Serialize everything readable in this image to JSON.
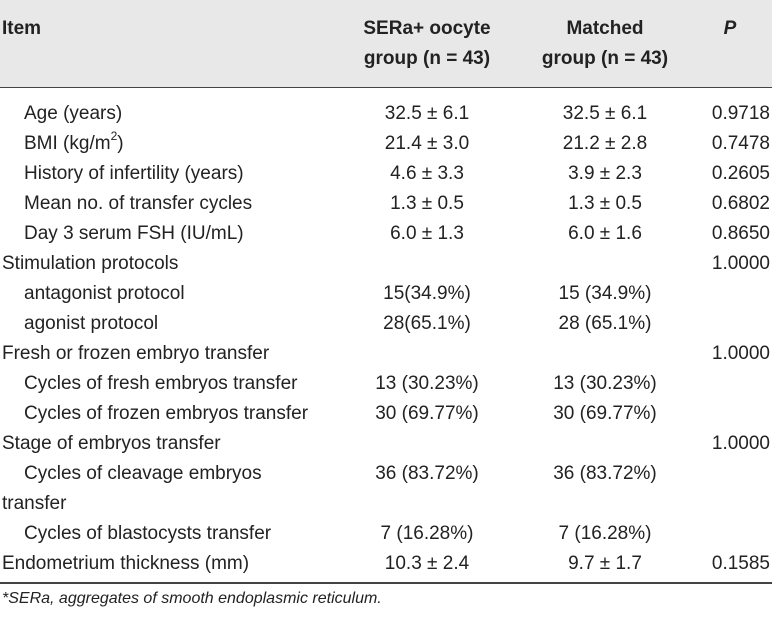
{
  "header": {
    "item": "Item",
    "group1": "SERa+ oocyte\ngroup (n = 43)",
    "group2": "Matched\ngroup (n = 43)",
    "p": "P"
  },
  "rows": [
    {
      "label": "Age (years)",
      "indent": true,
      "g1": "32.5 ± 6.1",
      "g2": "32.5 ± 6.1",
      "p": "0.9718"
    },
    {
      "label": "BMI (kg/m",
      "label_sup": "2",
      "label_suffix": ")",
      "indent": true,
      "g1": "21.4 ± 3.0",
      "g2": "21.2 ± 2.8",
      "p": "0.7478"
    },
    {
      "label": "History of infertility (years)",
      "indent": true,
      "g1": "4.6 ± 3.3",
      "g2": "3.9 ± 2.3",
      "p": "0.2605"
    },
    {
      "label": "Mean no. of transfer cycles",
      "indent": true,
      "g1": "1.3 ± 0.5",
      "g2": "1.3 ± 0.5",
      "p": "0.6802"
    },
    {
      "label": "Day 3 serum FSH (IU/mL)",
      "indent": true,
      "g1": "6.0 ± 1.3",
      "g2": "6.0 ± 1.6",
      "p": "0.8650"
    },
    {
      "label": "Stimulation protocols",
      "indent": false,
      "g1": "",
      "g2": "",
      "p": "1.0000"
    },
    {
      "label": "antagonist protocol",
      "indent": true,
      "g1": "15(34.9%)",
      "g2": "15 (34.9%)",
      "p": ""
    },
    {
      "label": "agonist protocol",
      "indent": true,
      "g1": "28(65.1%)",
      "g2": "28 (65.1%)",
      "p": ""
    },
    {
      "label": "Fresh or frozen embryo transfer",
      "indent": false,
      "g1": "",
      "g2": "",
      "p": "1.0000"
    },
    {
      "label": "Cycles of fresh embryos transfer",
      "indent": true,
      "g1": "13 (30.23%)",
      "g2": "13 (30.23%)",
      "p": ""
    },
    {
      "label": "Cycles of frozen embryos transfer",
      "indent": true,
      "g1": "30 (69.77%)",
      "g2": "30 (69.77%)",
      "p": ""
    },
    {
      "label": "Stage of embryos transfer",
      "indent": false,
      "g1": "",
      "g2": "",
      "p": "1.0000"
    },
    {
      "label": "Cycles of cleavage embryos",
      "label_line2": "transfer",
      "indent": true,
      "g1": "36 (83.72%)",
      "g2": "36 (83.72%)",
      "p": ""
    },
    {
      "label": "Cycles of blastocysts transfer",
      "indent": true,
      "g1": "7 (16.28%)",
      "g2": "7 (16.28%)",
      "p": ""
    },
    {
      "label": "Endometrium thickness (mm)",
      "indent": false,
      "g1": "10.3 ± 2.4",
      "g2": "9.7 ± 1.7",
      "p": "0.1585"
    }
  ],
  "footnote": "*SERa, aggregates of smooth endoplasmic reticulum."
}
